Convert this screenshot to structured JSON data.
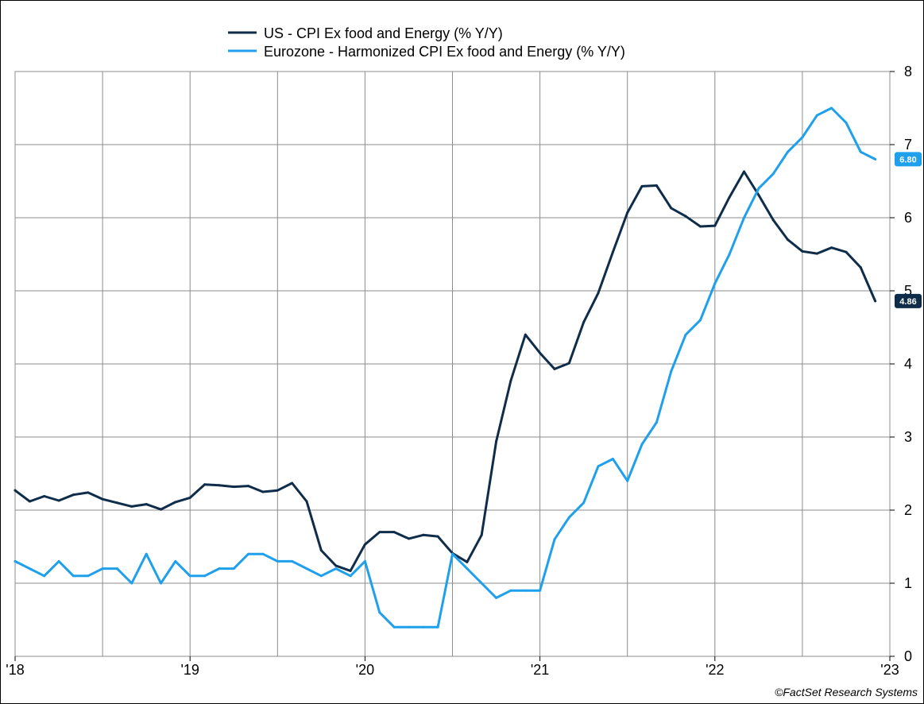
{
  "chart_data": {
    "type": "line",
    "title": "",
    "xlabel": "",
    "ylabel": "",
    "ylim": [
      0,
      8
    ],
    "yticks": [
      "0",
      "1",
      "2",
      "3",
      "4",
      "5",
      "6",
      "7",
      "8"
    ],
    "x_range": [
      "2018-01",
      "2023-01"
    ],
    "xticks": [
      {
        "date": "2018-01",
        "label": "'18"
      },
      {
        "date": "2019-01",
        "label": "'19"
      },
      {
        "date": "2020-01",
        "label": "'20"
      },
      {
        "date": "2021-01",
        "label": "'21"
      },
      {
        "date": "2022-01",
        "label": "'22"
      },
      {
        "date": "2023-01",
        "label": "'23"
      }
    ],
    "quarter_gridlines": [
      "2018-07",
      "2019-07",
      "2020-07",
      "2021-07",
      "2022-07"
    ],
    "grid": true,
    "legend_position": "top-center",
    "series": [
      {
        "name": "US - CPI Ex food and Energy (% Y/Y)",
        "color": "#0f2d4a",
        "end_label": "4.86",
        "values": [
          [
            "2018-01",
            2.27
          ],
          [
            "2018-02",
            2.12
          ],
          [
            "2018-03",
            2.19
          ],
          [
            "2018-04",
            2.13
          ],
          [
            "2018-05",
            2.21
          ],
          [
            "2018-06",
            2.24
          ],
          [
            "2018-07",
            2.15
          ],
          [
            "2018-08",
            2.1
          ],
          [
            "2018-09",
            2.05
          ],
          [
            "2018-10",
            2.08
          ],
          [
            "2018-11",
            2.01
          ],
          [
            "2018-12",
            2.11
          ],
          [
            "2019-01",
            2.17
          ],
          [
            "2019-02",
            2.35
          ],
          [
            "2019-03",
            2.34
          ],
          [
            "2019-04",
            2.32
          ],
          [
            "2019-05",
            2.33
          ],
          [
            "2019-06",
            2.25
          ],
          [
            "2019-07",
            2.27
          ],
          [
            "2019-08",
            2.37
          ],
          [
            "2019-09",
            2.12
          ],
          [
            "2019-10",
            1.45
          ],
          [
            "2019-11",
            1.24
          ],
          [
            "2019-12",
            1.17
          ],
          [
            "2020-01",
            1.53
          ],
          [
            "2020-02",
            1.7
          ],
          [
            "2020-03",
            1.7
          ],
          [
            "2020-04",
            1.61
          ],
          [
            "2020-05",
            1.66
          ],
          [
            "2020-06",
            1.64
          ],
          [
            "2020-07",
            1.41
          ],
          [
            "2020-08",
            1.29
          ],
          [
            "2020-09",
            1.66
          ],
          [
            "2020-10",
            2.94
          ],
          [
            "2020-11",
            3.77
          ],
          [
            "2020-12",
            4.4
          ],
          [
            "2021-01",
            4.15
          ],
          [
            "2021-02",
            3.93
          ],
          [
            "2021-03",
            4.01
          ],
          [
            "2021-04",
            4.57
          ],
          [
            "2021-05",
            4.97
          ],
          [
            "2021-06",
            5.53
          ],
          [
            "2021-07",
            6.07
          ],
          [
            "2021-08",
            6.43
          ],
          [
            "2021-09",
            6.44
          ],
          [
            "2021-10",
            6.13
          ],
          [
            "2021-11",
            6.02
          ],
          [
            "2021-12",
            5.88
          ],
          [
            "2022-01",
            5.89
          ],
          [
            "2022-02",
            6.28
          ],
          [
            "2022-03",
            6.63
          ],
          [
            "2022-04",
            6.31
          ],
          [
            "2022-05",
            5.97
          ],
          [
            "2022-06",
            5.7
          ],
          [
            "2022-07",
            5.54
          ],
          [
            "2022-08",
            5.51
          ],
          [
            "2022-09",
            5.59
          ],
          [
            "2022-10",
            5.53
          ],
          [
            "2022-11",
            5.32
          ],
          [
            "2022-12",
            4.86
          ]
        ]
      },
      {
        "name": "Eurozone - Harmonized CPI Ex food and Energy (% Y/Y)",
        "color": "#1ea0ec",
        "end_label": "6.80",
        "values": [
          [
            "2018-01",
            1.3
          ],
          [
            "2018-02",
            1.2
          ],
          [
            "2018-03",
            1.1
          ],
          [
            "2018-04",
            1.3
          ],
          [
            "2018-05",
            1.1
          ],
          [
            "2018-06",
            1.1
          ],
          [
            "2018-07",
            1.2
          ],
          [
            "2018-08",
            1.2
          ],
          [
            "2018-09",
            1.0
          ],
          [
            "2018-10",
            1.4
          ],
          [
            "2018-11",
            1.0
          ],
          [
            "2018-12",
            1.3
          ],
          [
            "2019-01",
            1.1
          ],
          [
            "2019-02",
            1.1
          ],
          [
            "2019-03",
            1.2
          ],
          [
            "2019-04",
            1.2
          ],
          [
            "2019-05",
            1.4
          ],
          [
            "2019-06",
            1.4
          ],
          [
            "2019-07",
            1.3
          ],
          [
            "2019-08",
            1.3
          ],
          [
            "2019-09",
            1.2
          ],
          [
            "2019-10",
            1.1
          ],
          [
            "2019-11",
            1.2
          ],
          [
            "2019-12",
            1.1
          ],
          [
            "2020-01",
            1.3
          ],
          [
            "2020-02",
            0.6
          ],
          [
            "2020-03",
            0.4
          ],
          [
            "2020-04",
            0.4
          ],
          [
            "2020-05",
            0.4
          ],
          [
            "2020-06",
            0.4
          ],
          [
            "2020-07",
            1.4
          ],
          [
            "2020-08",
            1.2
          ],
          [
            "2020-09",
            1.0
          ],
          [
            "2020-10",
            0.8
          ],
          [
            "2020-11",
            0.9
          ],
          [
            "2020-12",
            0.9
          ],
          [
            "2021-01",
            0.9
          ],
          [
            "2021-02",
            1.6
          ],
          [
            "2021-03",
            1.9
          ],
          [
            "2021-04",
            2.1
          ],
          [
            "2021-05",
            2.6
          ],
          [
            "2021-06",
            2.7
          ],
          [
            "2021-07",
            2.4
          ],
          [
            "2021-08",
            2.9
          ],
          [
            "2021-09",
            3.2
          ],
          [
            "2021-10",
            3.9
          ],
          [
            "2021-11",
            4.4
          ],
          [
            "2021-12",
            4.6
          ],
          [
            "2022-01",
            5.1
          ],
          [
            "2022-02",
            5.5
          ],
          [
            "2022-03",
            6.0
          ],
          [
            "2022-04",
            6.4
          ],
          [
            "2022-05",
            6.6
          ],
          [
            "2022-06",
            6.9
          ],
          [
            "2022-07",
            7.1
          ],
          [
            "2022-08",
            7.4
          ],
          [
            "2022-09",
            7.5
          ],
          [
            "2022-10",
            7.3
          ],
          [
            "2022-11",
            6.9
          ],
          [
            "2022-12",
            6.8
          ]
        ]
      }
    ]
  },
  "credit": "©FactSet Research Systems"
}
